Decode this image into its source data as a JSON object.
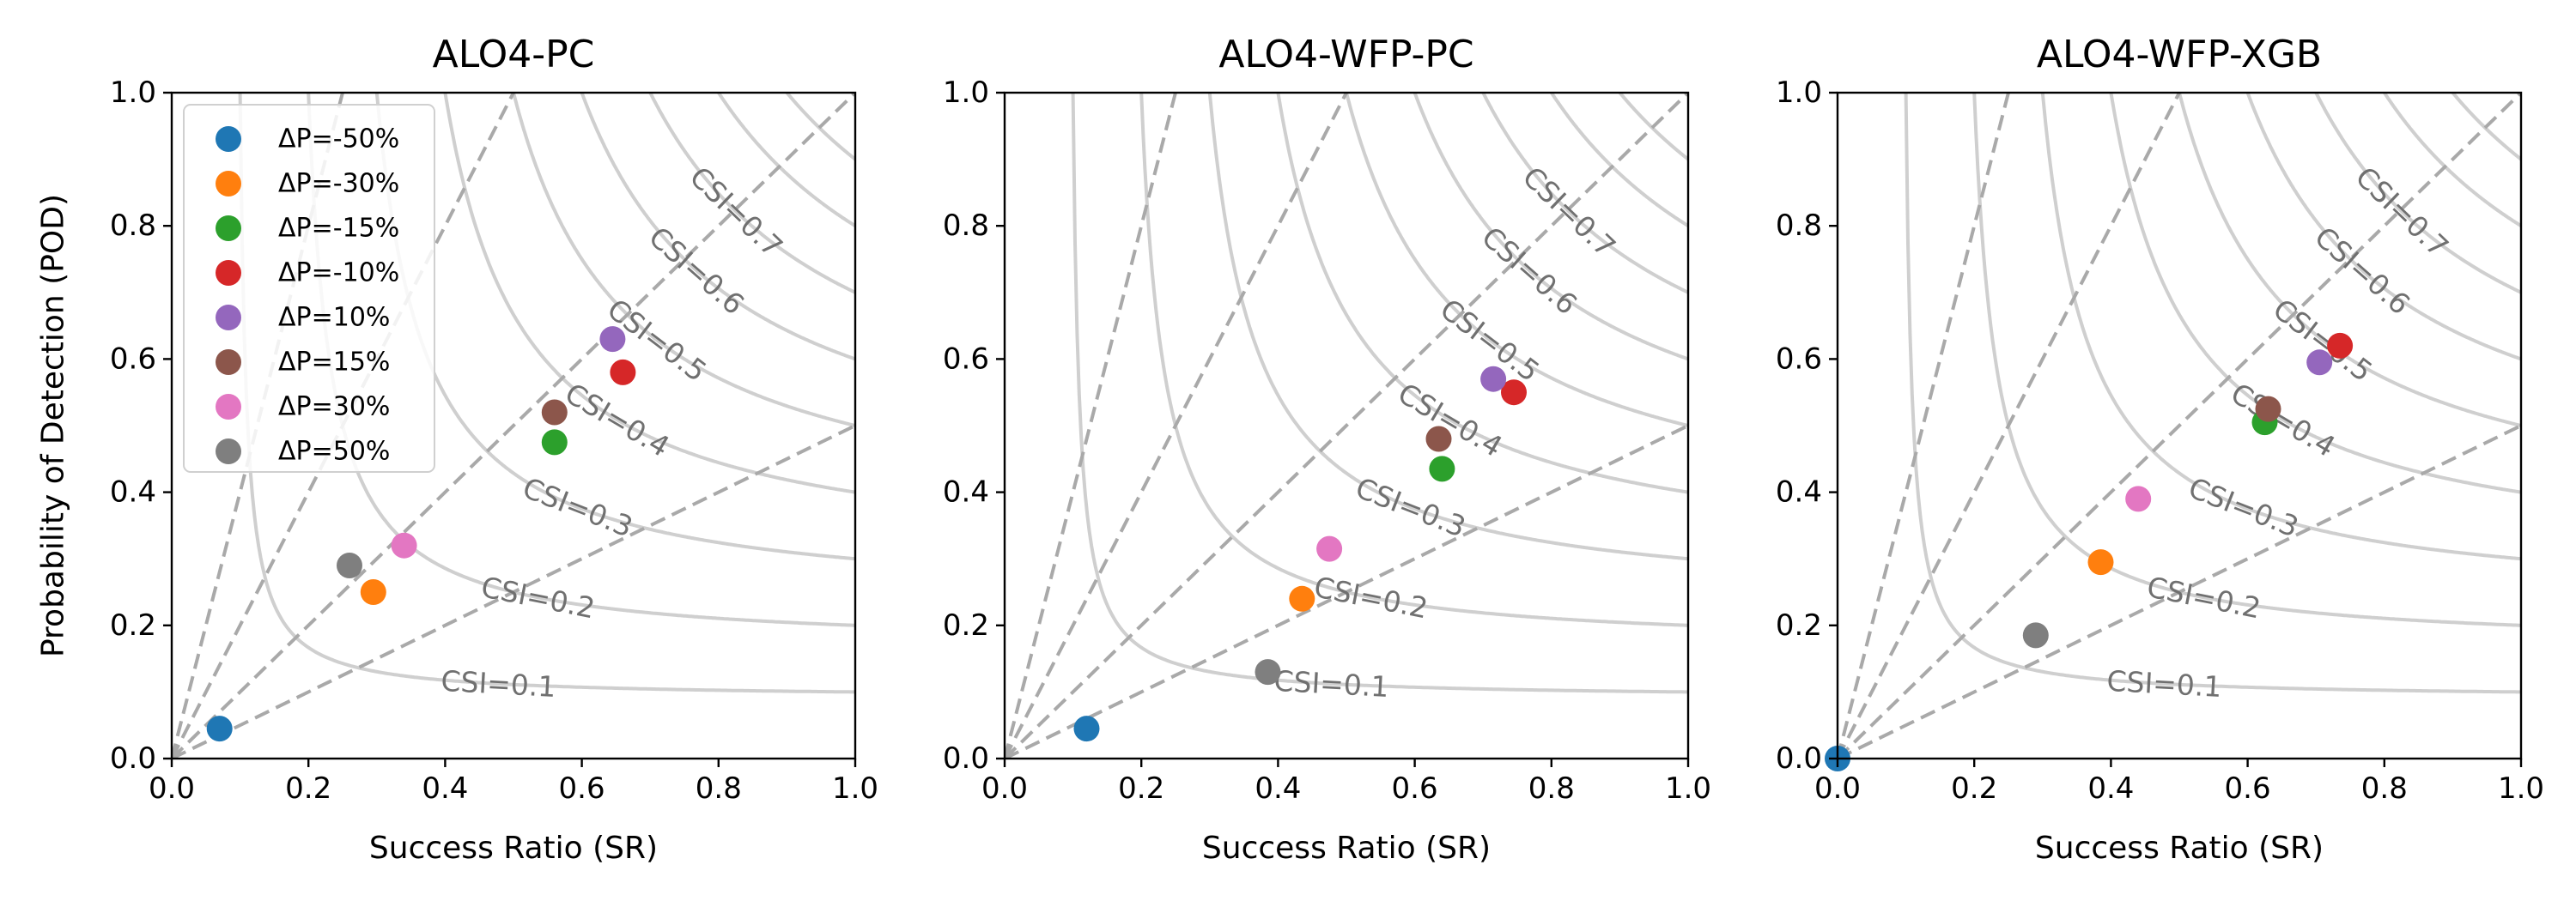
{
  "chart_data": {
    "type": "scatter",
    "description_axes": {
      "xlabel": "Success Ratio (SR)",
      "ylabel": "Probability of Detection (POD)",
      "xlim": [
        0.0,
        1.0
      ],
      "ylim": [
        0.0,
        1.0
      ],
      "ticks": [
        "0.0",
        "0.2",
        "0.4",
        "0.6",
        "0.8",
        "1.0"
      ]
    },
    "csi_contours": [
      {
        "csi": 0.1,
        "label": "CSI=0.1"
      },
      {
        "csi": 0.2,
        "label": "CSI=0.2"
      },
      {
        "csi": 0.3,
        "label": "CSI=0.3"
      },
      {
        "csi": 0.4,
        "label": "CSI=0.4"
      },
      {
        "csi": 0.5,
        "label": "CSI=0.5"
      },
      {
        "csi": 0.6,
        "label": "CSI=0.6"
      },
      {
        "csi": 0.7,
        "label": "CSI=0.7"
      },
      {
        "csi": 0.8,
        "label": ""
      },
      {
        "csi": 0.9,
        "label": ""
      }
    ],
    "bias_lines": [
      0.5,
      1.0,
      2.0,
      4.0
    ],
    "series": [
      {
        "name": "ΔP=-50%",
        "color": "#1f77b4"
      },
      {
        "name": "ΔP=-30%",
        "color": "#ff7f0e"
      },
      {
        "name": "ΔP=-15%",
        "color": "#2ca02c"
      },
      {
        "name": "ΔP=-10%",
        "color": "#d62728"
      },
      {
        "name": "ΔP=10%",
        "color": "#9467bd"
      },
      {
        "name": "ΔP=15%",
        "color": "#8c564b"
      },
      {
        "name": "ΔP=30%",
        "color": "#e377c2"
      },
      {
        "name": "ΔP=50%",
        "color": "#7f7f7f"
      }
    ],
    "legend": {
      "placement": "upper-left",
      "panel": 0
    },
    "panels": [
      {
        "title": "ALO4-PC",
        "points": [
          {
            "sr": 0.07,
            "pod": 0.045
          },
          {
            "sr": 0.295,
            "pod": 0.25
          },
          {
            "sr": 0.56,
            "pod": 0.475
          },
          {
            "sr": 0.66,
            "pod": 0.58
          },
          {
            "sr": 0.645,
            "pod": 0.63
          },
          {
            "sr": 0.56,
            "pod": 0.52
          },
          {
            "sr": 0.34,
            "pod": 0.32
          },
          {
            "sr": 0.26,
            "pod": 0.29
          }
        ]
      },
      {
        "title": "ALO4-WFP-PC",
        "points": [
          {
            "sr": 0.12,
            "pod": 0.045
          },
          {
            "sr": 0.435,
            "pod": 0.24
          },
          {
            "sr": 0.64,
            "pod": 0.435
          },
          {
            "sr": 0.745,
            "pod": 0.55
          },
          {
            "sr": 0.715,
            "pod": 0.57
          },
          {
            "sr": 0.635,
            "pod": 0.48
          },
          {
            "sr": 0.475,
            "pod": 0.315
          },
          {
            "sr": 0.385,
            "pod": 0.13
          }
        ]
      },
      {
        "title": "ALO4-WFP-XGB",
        "points": [
          {
            "sr": 0.0,
            "pod": 0.0
          },
          {
            "sr": 0.385,
            "pod": 0.295
          },
          {
            "sr": 0.625,
            "pod": 0.505
          },
          {
            "sr": 0.735,
            "pod": 0.62
          },
          {
            "sr": 0.705,
            "pod": 0.595
          },
          {
            "sr": 0.63,
            "pod": 0.525
          },
          {
            "sr": 0.44,
            "pod": 0.39
          },
          {
            "sr": 0.29,
            "pod": 0.185
          }
        ]
      }
    ]
  }
}
